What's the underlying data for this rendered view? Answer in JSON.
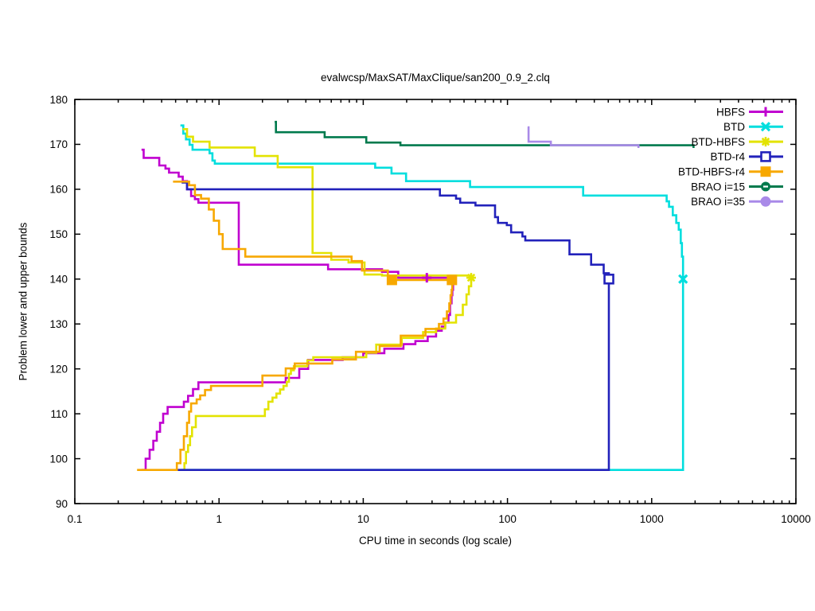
{
  "chart_data": {
    "type": "line",
    "title": "evalwcsp/MaxSAT/MaxClique/san200_0.9_2.clq",
    "xlabel": "CPU time in seconds (log scale)",
    "ylabel": "Problem lower and upper bounds",
    "x_scale": "log",
    "xlim": [
      0.1,
      10000
    ],
    "ylim": [
      90,
      180
    ],
    "x_ticks": [
      0.1,
      1,
      10,
      100,
      1000,
      10000
    ],
    "x_tick_labels": [
      "0.1",
      "1",
      "10",
      "100",
      "1000",
      "10000"
    ],
    "y_ticks": [
      90,
      100,
      110,
      120,
      130,
      140,
      150,
      160,
      170,
      180
    ],
    "grid": false,
    "legend_position": "top-right-inside",
    "background": "#ffffff",
    "axis_color": "#000000",
    "optimum_value": 140,
    "series": [
      {
        "name": "HBFS",
        "color": "#c000d0",
        "marker": "plus",
        "upper": [
          [
            0.29,
            168.8
          ],
          [
            0.3,
            167
          ],
          [
            0.385,
            165.3
          ],
          [
            0.425,
            164.6
          ],
          [
            0.45,
            163.7
          ],
          [
            0.525,
            162.8
          ],
          [
            0.56,
            161.8
          ],
          [
            0.6,
            160
          ],
          [
            0.64,
            158.5
          ],
          [
            0.68,
            157.8
          ],
          [
            0.72,
            157
          ],
          [
            1.37,
            143.2
          ],
          [
            5.7,
            142.2
          ],
          [
            13.5,
            141.6
          ],
          [
            17.5,
            140.3
          ],
          [
            42,
            140.3
          ]
        ],
        "lower": [
          [
            0.29,
            97.5
          ],
          [
            0.31,
            100
          ],
          [
            0.33,
            102
          ],
          [
            0.35,
            104
          ],
          [
            0.37,
            106
          ],
          [
            0.39,
            108
          ],
          [
            0.41,
            110
          ],
          [
            0.44,
            111.5
          ],
          [
            0.57,
            112.7
          ],
          [
            0.61,
            114
          ],
          [
            0.66,
            115.5
          ],
          [
            0.72,
            117
          ],
          [
            2.9,
            118
          ],
          [
            3.6,
            120
          ],
          [
            4.15,
            122
          ],
          [
            7.2,
            122.6
          ],
          [
            10,
            123.5
          ],
          [
            14,
            124.5
          ],
          [
            19,
            125.5
          ],
          [
            23,
            126.2
          ],
          [
            28,
            127.2
          ],
          [
            32,
            128.5
          ],
          [
            35,
            129.4
          ],
          [
            37,
            130.3
          ],
          [
            39,
            132
          ],
          [
            40,
            134.6
          ],
          [
            41,
            136.4
          ],
          [
            41.5,
            137.6
          ],
          [
            42,
            140.3
          ]
        ],
        "solved_markers": [
          [
            27.6,
            140.3
          ]
        ]
      },
      {
        "name": "BTD",
        "color": "#00dede",
        "marker": "cross",
        "upper": [
          [
            0.54,
            174.2
          ],
          [
            0.565,
            172.4
          ],
          [
            0.59,
            171.1
          ],
          [
            0.625,
            169.9
          ],
          [
            0.655,
            168.8
          ],
          [
            0.86,
            168
          ],
          [
            0.9,
            166.4
          ],
          [
            0.935,
            165.7
          ],
          [
            12.1,
            164.8
          ],
          [
            15.7,
            163.5
          ],
          [
            19.8,
            161.8
          ],
          [
            55,
            160.5
          ],
          [
            335,
            158.6
          ],
          [
            1270,
            157.3
          ],
          [
            1320,
            156.1
          ],
          [
            1400,
            154.2
          ],
          [
            1480,
            152.5
          ],
          [
            1540,
            151
          ],
          [
            1590,
            148
          ],
          [
            1620,
            145
          ],
          [
            1650,
            140
          ]
        ],
        "lower": [
          [
            0.54,
            97.5
          ],
          [
            1650,
            97.5
          ],
          [
            1650,
            140
          ]
        ],
        "solved_markers": [
          [
            1650,
            140
          ]
        ]
      },
      {
        "name": "BTD-HBFS",
        "color": "#e3e300",
        "marker": "star",
        "upper": [
          [
            0.56,
            173.4
          ],
          [
            0.6,
            171.7
          ],
          [
            0.66,
            170.6
          ],
          [
            0.86,
            169.3
          ],
          [
            1.77,
            167.4
          ],
          [
            2.55,
            164.9
          ],
          [
            4.45,
            145.8
          ],
          [
            6,
            144.3
          ],
          [
            7.9,
            143.7
          ],
          [
            10.2,
            141
          ],
          [
            13.5,
            140.8
          ],
          [
            56,
            140.8
          ]
        ],
        "lower": [
          [
            0.56,
            97.5
          ],
          [
            0.575,
            99
          ],
          [
            0.59,
            101.5
          ],
          [
            0.61,
            103
          ],
          [
            0.63,
            105
          ],
          [
            0.65,
            107
          ],
          [
            0.69,
            109.5
          ],
          [
            2.08,
            111
          ],
          [
            2.2,
            112.7
          ],
          [
            2.35,
            113.6
          ],
          [
            2.5,
            114.5
          ],
          [
            2.65,
            115.4
          ],
          [
            2.8,
            116.2
          ],
          [
            2.95,
            117.1
          ],
          [
            3.05,
            118.9
          ],
          [
            3.15,
            119.7
          ],
          [
            3.3,
            120.6
          ],
          [
            4.1,
            121.9
          ],
          [
            4.5,
            122.6
          ],
          [
            10.5,
            123.6
          ],
          [
            12.3,
            125.4
          ],
          [
            18.5,
            126.9
          ],
          [
            26,
            128.2
          ],
          [
            32,
            129
          ],
          [
            37,
            130.3
          ],
          [
            44,
            132
          ],
          [
            49,
            134.3
          ],
          [
            52,
            136.6
          ],
          [
            54,
            138.4
          ],
          [
            56,
            140.3
          ]
        ],
        "solved_markers": [
          [
            56,
            140.3
          ]
        ]
      },
      {
        "name": "BTD-r4",
        "color": "#2222bb",
        "marker": "square-open",
        "upper": [
          [
            0.55,
            161.5
          ],
          [
            0.6,
            160
          ],
          [
            34,
            158.6
          ],
          [
            44,
            157.9
          ],
          [
            47,
            157
          ],
          [
            60,
            156.4
          ],
          [
            82,
            153.8
          ],
          [
            86,
            152.5
          ],
          [
            99,
            152
          ],
          [
            106,
            150.4
          ],
          [
            127,
            149.5
          ],
          [
            133,
            148.6
          ],
          [
            269,
            145.5
          ],
          [
            380,
            143.2
          ],
          [
            465,
            141.3
          ],
          [
            505,
            140
          ]
        ],
        "lower": [
          [
            0.51,
            97.5
          ],
          [
            505,
            97.5
          ],
          [
            505,
            140
          ]
        ],
        "solved_markers": [
          [
            505,
            140
          ]
        ]
      },
      {
        "name": "BTD-HBFS-r4",
        "color": "#f7a800",
        "marker": "square-filled",
        "upper": [
          [
            0.48,
            161.7
          ],
          [
            0.62,
            160.9
          ],
          [
            0.68,
            158.7
          ],
          [
            0.75,
            157.9
          ],
          [
            0.85,
            155.5
          ],
          [
            0.92,
            153
          ],
          [
            1.0,
            150
          ],
          [
            1.06,
            146.7
          ],
          [
            1.52,
            145
          ],
          [
            8.3,
            144
          ],
          [
            9.8,
            141.9
          ],
          [
            14.8,
            139.8
          ],
          [
            41.4,
            139.8
          ]
        ],
        "lower": [
          [
            0.27,
            97.5
          ],
          [
            0.51,
            99
          ],
          [
            0.54,
            102
          ],
          [
            0.57,
            105
          ],
          [
            0.6,
            108
          ],
          [
            0.62,
            110.5
          ],
          [
            0.64,
            112.3
          ],
          [
            0.7,
            113.2
          ],
          [
            0.74,
            114.1
          ],
          [
            0.8,
            115.3
          ],
          [
            0.88,
            116.2
          ],
          [
            2.0,
            118.5
          ],
          [
            2.9,
            120.1
          ],
          [
            3.35,
            121.2
          ],
          [
            6.1,
            122.1
          ],
          [
            8.9,
            123.8
          ],
          [
            13,
            125.1
          ],
          [
            18.2,
            127.4
          ],
          [
            27,
            128.9
          ],
          [
            33.5,
            130
          ],
          [
            36,
            131.2
          ],
          [
            38,
            132.8
          ],
          [
            39.5,
            134.6
          ],
          [
            40.3,
            136.4
          ],
          [
            41,
            137.6
          ],
          [
            41.4,
            139.8
          ]
        ],
        "solved_markers": [
          [
            15.8,
            139.8
          ],
          [
            41.2,
            139.8
          ]
        ]
      },
      {
        "name": "BRAO i=15",
        "color": "#007a4d",
        "marker": "circle-dash",
        "upper": [
          [
            2.43,
            175
          ],
          [
            2.48,
            172.7
          ],
          [
            5.4,
            171.6
          ],
          [
            10.5,
            170.4
          ],
          [
            18.1,
            169.8
          ],
          [
            1950,
            169.2
          ]
        ],
        "lower": null,
        "solved_markers": []
      },
      {
        "name": "BRAO i=35",
        "color": "#a98ae8",
        "marker": "circle",
        "upper": [
          [
            138,
            173.8
          ],
          [
            140,
            170.6
          ],
          [
            200,
            169.8
          ],
          [
            810,
            169.2
          ]
        ],
        "lower": null,
        "solved_markers": []
      }
    ]
  }
}
